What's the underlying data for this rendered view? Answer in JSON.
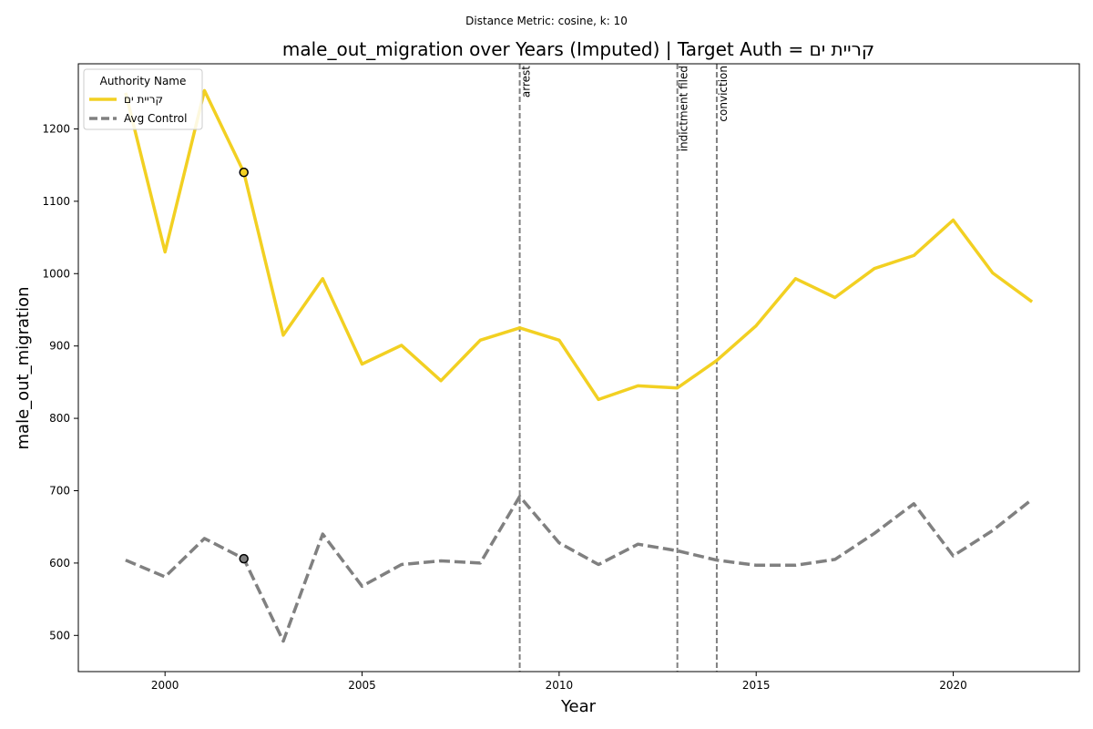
{
  "chart_data": {
    "type": "line",
    "subtitle": "Distance Metric: cosine, k: 10",
    "title": "male_out_migration over Years (Imputed) | Target Auth = קריית ים",
    "xlabel": "Year",
    "ylabel": "male_out_migration",
    "xlim": [
      1997.8,
      2023.2
    ],
    "ylim": [
      450,
      1290
    ],
    "x_ticks": [
      2000,
      2005,
      2010,
      2015,
      2020
    ],
    "y_ticks": [
      500,
      600,
      700,
      800,
      900,
      1000,
      1100,
      1200
    ],
    "grid": false,
    "legend": {
      "title": "Authority Name",
      "placement": "top-left"
    },
    "x": [
      1999,
      2000,
      2001,
      2002,
      2003,
      2004,
      2005,
      2006,
      2007,
      2008,
      2009,
      2010,
      2011,
      2012,
      2013,
      2014,
      2015,
      2016,
      2017,
      2018,
      2019,
      2020,
      2021,
      2022
    ],
    "series": [
      {
        "name": "קריית ים",
        "color": "#f2d022",
        "style": "solid",
        "values": [
          1250,
          1030,
          1253,
          1140,
          915,
          993,
          875,
          901,
          852,
          908,
          925,
          908,
          826,
          845,
          842,
          880,
          928,
          993,
          967,
          1007,
          1025,
          1074,
          1001,
          961
        ]
      },
      {
        "name": "Avg Control",
        "color": "#808080",
        "style": "dashed",
        "values": [
          604,
          581,
          634,
          606,
          492,
          640,
          568,
          598,
          603,
          600,
          692,
          628,
          598,
          626,
          617,
          604,
          597,
          597,
          605,
          641,
          682,
          610,
          645,
          688
        ]
      }
    ],
    "markers": [
      {
        "series": "קריית ים",
        "x": 2002,
        "y": 1140,
        "color": "#f2d022"
      },
      {
        "series": "Avg Control",
        "x": 2002,
        "y": 606,
        "color": "#808080"
      }
    ],
    "events": [
      {
        "x": 2009,
        "label": "arrest"
      },
      {
        "x": 2013,
        "label": "indictment filed"
      },
      {
        "x": 2014,
        "label": "conviction"
      }
    ]
  }
}
